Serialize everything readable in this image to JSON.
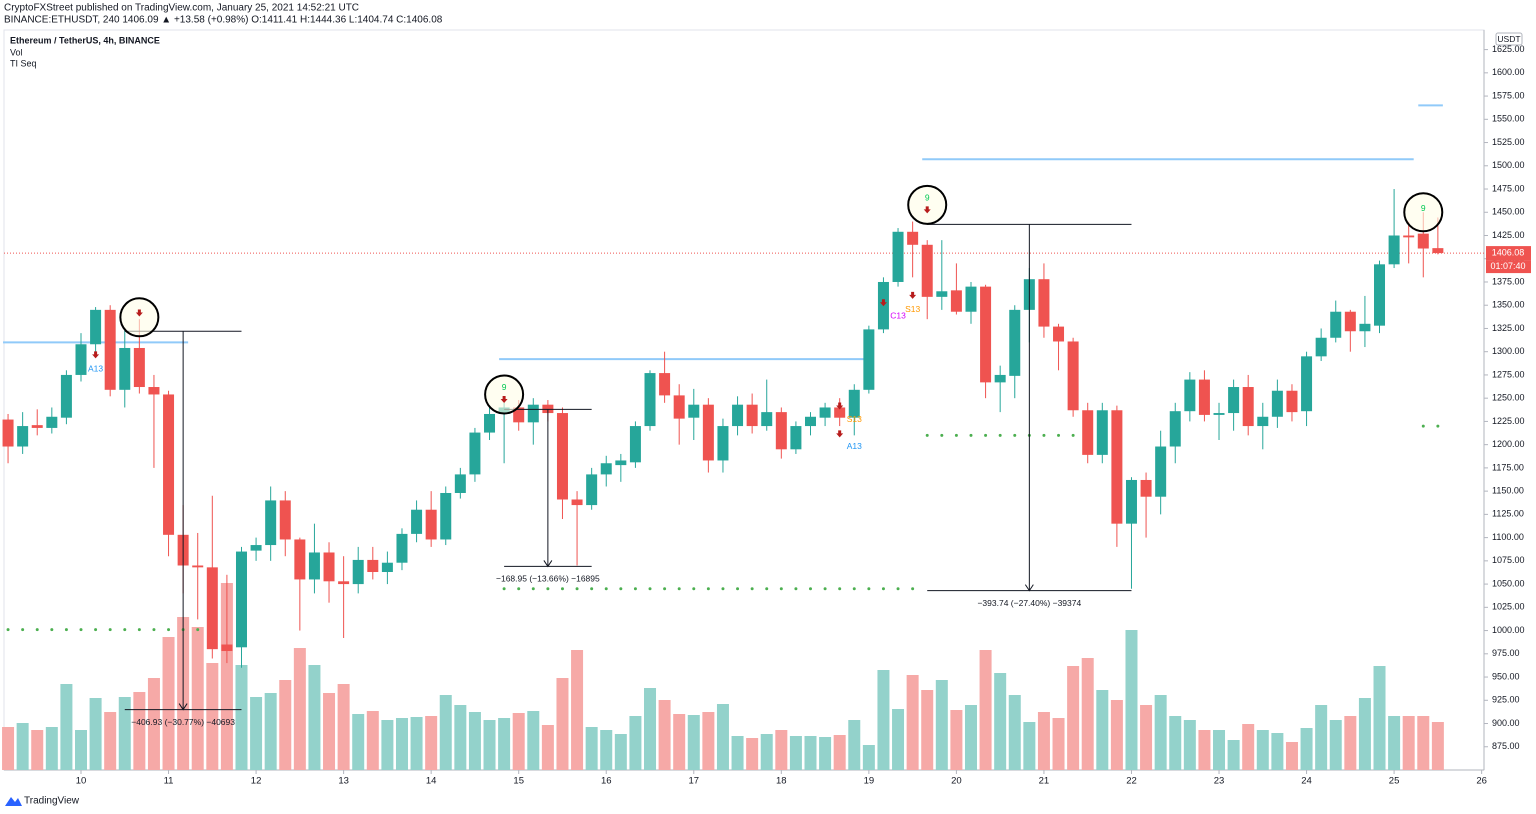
{
  "chart_data": {
    "type": "candlestick",
    "published": "CryptoFXStreet published on TradingView.com, January 25, 2021 14:52:21 UTC",
    "quote": "BINANCE:ETHUSDT, 240  1406.09  ▲ +13.58 (+0.98%)  O:1411.41  H:1444.36  L:1404.74  C:1406.08",
    "title": "Ethereum / TetherUS, 4h, BINANCE",
    "indicators": [
      "Vol",
      "TI Seq"
    ],
    "currency": "USDT",
    "footer": "TradingView",
    "up_color": "#26a69a",
    "down_color": "#ef5350",
    "volume_up_color": "#93d2cb",
    "volume_down_color": "#f6a9a7",
    "open": [
      1227,
      1198,
      1221,
      1218,
      1229,
      1275,
      1308,
      1345,
      1259,
      1304,
      1262,
      1254,
      1103,
      1070,
      1068,
      985,
      982,
      1086,
      1092,
      1140,
      1098,
      1055,
      1084,
      1053,
      1050,
      1076,
      1063,
      1073,
      1104,
      1130,
      1098,
      1148,
      1168,
      1213,
      1233,
      1240,
      1224,
      1243,
      1234,
      1141,
      1135,
      1168,
      1178,
      1181,
      1220,
      1277,
      1253,
      1229,
      1243,
      1183,
      1220,
      1243,
      1220,
      1235,
      1195,
      1220,
      1229,
      1240,
      1229,
      1259,
      1324,
      1375,
      1429,
      1415,
      1359,
      1366,
      1343,
      1370,
      1267,
      1274,
      1345,
      1378,
      1327,
      1311,
      1237,
      1189,
      1237,
      1115,
      1162,
      1144,
      1198,
      1236,
      1270,
      1232,
      1234,
      1262,
      1220,
      1230,
      1258,
      1236,
      1295,
      1315,
      1343,
      1322,
      1328,
      1394,
      1425,
      1427,
      1411.41
    ],
    "high": [
      1233,
      1235,
      1238,
      1240,
      1280,
      1320,
      1348,
      1350,
      1325,
      1335,
      1275,
      1258,
      1135,
      1105,
      1145,
      1060,
      1090,
      1100,
      1155,
      1150,
      1100,
      1115,
      1095,
      1080,
      1090,
      1090,
      1085,
      1110,
      1140,
      1150,
      1155,
      1175,
      1218,
      1240,
      1245,
      1248,
      1250,
      1248,
      1240,
      1150,
      1175,
      1188,
      1190,
      1225,
      1280,
      1300,
      1265,
      1260,
      1250,
      1228,
      1252,
      1255,
      1270,
      1240,
      1225,
      1235,
      1245,
      1250,
      1265,
      1328,
      1380,
      1433,
      1440,
      1420,
      1420,
      1395,
      1375,
      1372,
      1285,
      1350,
      1390,
      1395,
      1330,
      1315,
      1245,
      1245,
      1242,
      1165,
      1170,
      1215,
      1245,
      1278,
      1280,
      1245,
      1270,
      1275,
      1245,
      1270,
      1265,
      1300,
      1325,
      1355,
      1345,
      1360,
      1398,
      1475,
      1440,
      1450,
      1444.36
    ],
    "low": [
      1180,
      1190,
      1210,
      1212,
      1222,
      1268,
      1300,
      1252,
      1240,
      1255,
      1175,
      1080,
      1040,
      1012,
      970,
      965,
      960,
      1075,
      1075,
      1080,
      1000,
      1040,
      1030,
      992,
      1040,
      1055,
      1050,
      1065,
      1095,
      1090,
      1092,
      1142,
      1160,
      1205,
      1180,
      1215,
      1200,
      1225,
      1120,
      1070,
      1130,
      1155,
      1160,
      1175,
      1215,
      1245,
      1200,
      1205,
      1170,
      1170,
      1210,
      1212,
      1215,
      1185,
      1190,
      1210,
      1220,
      1220,
      1210,
      1255,
      1320,
      1370,
      1380,
      1335,
      1345,
      1340,
      1330,
      1250,
      1235,
      1250,
      1310,
      1315,
      1280,
      1230,
      1180,
      1180,
      1090,
      1045,
      1100,
      1125,
      1180,
      1225,
      1225,
      1205,
      1215,
      1210,
      1195,
      1218,
      1225,
      1220,
      1290,
      1310,
      1300,
      1305,
      1320,
      1390,
      1395,
      1380,
      1404.74
    ],
    "close": [
      1198,
      1220,
      1218,
      1230,
      1275,
      1308,
      1345,
      1259,
      1304,
      1262,
      1254,
      1103,
      1070,
      1068,
      980,
      978,
      1085,
      1092,
      1140,
      1098,
      1055,
      1084,
      1053,
      1050,
      1076,
      1063,
      1073,
      1104,
      1130,
      1098,
      1148,
      1168,
      1213,
      1233,
      1240,
      1224,
      1243,
      1234,
      1141,
      1135,
      1168,
      1180,
      1183,
      1220,
      1277,
      1253,
      1228,
      1243,
      1183,
      1220,
      1243,
      1220,
      1235,
      1195,
      1220,
      1230,
      1240,
      1229,
      1259,
      1324,
      1375,
      1429,
      1415,
      1359,
      1365,
      1343,
      1370,
      1267,
      1275,
      1345,
      1378,
      1327,
      1311,
      1237,
      1189,
      1237,
      1115,
      1162,
      1144,
      1198,
      1236,
      1270,
      1232,
      1234,
      1262,
      1220,
      1230,
      1258,
      1235,
      1295,
      1315,
      1343,
      1322,
      1330,
      1394,
      1425,
      1423,
      1411,
      1406.08
    ],
    "volumes": [
      43,
      47,
      40,
      43,
      86,
      40,
      72,
      58,
      73,
      78,
      92,
      133,
      153,
      143,
      107,
      187,
      105,
      73,
      77,
      90,
      122,
      105,
      77,
      86,
      56,
      59,
      50,
      52,
      53,
      54,
      75,
      65,
      58,
      50,
      52,
      57,
      59,
      45,
      92,
      120,
      43,
      40,
      36,
      54,
      82,
      70,
      56,
      55,
      58,
      66,
      34,
      32,
      36,
      40,
      34,
      34,
      33,
      35,
      50,
      25,
      100,
      61,
      95,
      80,
      90,
      60,
      65,
      120,
      97,
      75,
      48,
      58,
      52,
      104,
      112,
      80,
      70,
      140,
      65,
      75,
      54,
      50,
      40,
      40,
      30,
      46,
      40,
      37,
      28,
      42,
      65,
      50,
      54,
      72,
      104,
      54,
      54,
      54,
      48
    ],
    "ylim": [
      850,
      1645
    ],
    "vlim": [
      0,
      160
    ],
    "yticks": [
      {
        "value": 875,
        "label": "875.00"
      },
      {
        "value": 900,
        "label": "900.00"
      },
      {
        "value": 925,
        "label": "925.00"
      },
      {
        "value": 950,
        "label": "950.00"
      },
      {
        "value": 975,
        "label": "975.00"
      },
      {
        "value": 1000,
        "label": "1000.00"
      },
      {
        "value": 1025,
        "label": "1025.00"
      },
      {
        "value": 1050,
        "label": "1050.00"
      },
      {
        "value": 1075,
        "label": "1075.00"
      },
      {
        "value": 1100,
        "label": "1100.00"
      },
      {
        "value": 1125,
        "label": "1125.00"
      },
      {
        "value": 1150,
        "label": "1150.00"
      },
      {
        "value": 1175,
        "label": "1175.00"
      },
      {
        "value": 1200,
        "label": "1200.00"
      },
      {
        "value": 1225,
        "label": "1225.00"
      },
      {
        "value": 1250,
        "label": "1250.00"
      },
      {
        "value": 1275,
        "label": "1275.00"
      },
      {
        "value": 1300,
        "label": "1300.00"
      },
      {
        "value": 1325,
        "label": "1325.00"
      },
      {
        "value": 1350,
        "label": "1350.00"
      },
      {
        "value": 1375,
        "label": "1375.00"
      },
      {
        "value": 1400,
        "label": "1400.00"
      },
      {
        "value": 1425,
        "label": "1425.00"
      },
      {
        "value": 1450,
        "label": "1450.00"
      },
      {
        "value": 1475,
        "label": "1475.00"
      },
      {
        "value": 1500,
        "label": "1500.00"
      },
      {
        "value": 1525,
        "label": "1525.00"
      },
      {
        "value": 1550,
        "label": "1550.00"
      },
      {
        "value": 1575,
        "label": "1575.00"
      },
      {
        "value": 1600,
        "label": "1600.00"
      },
      {
        "value": 1625,
        "label": "1625.00"
      }
    ],
    "xticks": [
      {
        "value": 5,
        "label": "10"
      },
      {
        "value": 11,
        "label": "11"
      },
      {
        "value": 17,
        "label": "12"
      },
      {
        "value": 23,
        "label": "13"
      },
      {
        "value": 29,
        "label": "14"
      },
      {
        "value": 35,
        "label": "15"
      },
      {
        "value": 41,
        "label": "16"
      },
      {
        "value": 47,
        "label": "17"
      },
      {
        "value": 53,
        "label": "18"
      },
      {
        "value": 59,
        "label": "19"
      },
      {
        "value": 65,
        "label": "20"
      },
      {
        "value": 71,
        "label": "21"
      },
      {
        "value": 77,
        "label": "22"
      },
      {
        "value": 83,
        "label": "23"
      },
      {
        "value": 89,
        "label": "24"
      },
      {
        "value": 95,
        "label": "25"
      },
      {
        "value": 101,
        "label": "26"
      }
    ],
    "last_price": 1406.08,
    "countdown": "01:07:40",
    "resistance_lines": [
      {
        "price": 1310,
        "from": 0,
        "to": 12
      },
      {
        "price": 1292,
        "from": 34,
        "to": 59
      },
      {
        "price": 1507,
        "from": 63,
        "to": 96
      },
      {
        "price": 1565,
        "from": 97,
        "to": 98
      }
    ],
    "support_lines": [
      {
        "price": 1001,
        "from": 0,
        "to": 13
      },
      {
        "price": 1045,
        "from": 34,
        "to": 62
      },
      {
        "price": 1210,
        "from": 63,
        "to": 74
      },
      {
        "price": 1220,
        "from": 97,
        "to": 98
      }
    ],
    "measures": [
      {
        "from_price": 1322,
        "to_price": 915,
        "from_index": 8,
        "to_index": 16,
        "text": "−406.93 (−30.77%) −40693"
      },
      {
        "from_price": 1238,
        "to_price": 1069,
        "from_index": 34,
        "to_index": 40,
        "text": "−168.95 (−13.66%) −16895"
      },
      {
        "from_price": 1437,
        "to_price": 1043,
        "from_index": 63,
        "to_index": 77,
        "text": "−393.74 (−27.40%) −39374"
      }
    ],
    "circles": [
      {
        "index": 9,
        "price": 1337
      },
      {
        "index": 34,
        "price": 1254
      },
      {
        "index": 63,
        "price": 1458
      },
      {
        "index": 97,
        "price": 1450
      }
    ],
    "arrows": [
      {
        "index": 6,
        "price": 1295
      },
      {
        "index": 9,
        "price": 1340
      },
      {
        "index": 34,
        "price": 1247
      },
      {
        "index": 57,
        "price": 1240
      },
      {
        "index": 57,
        "price": 1210
      },
      {
        "index": 60,
        "price": 1351
      },
      {
        "index": 62,
        "price": 1359
      },
      {
        "index": 63,
        "price": 1451
      }
    ],
    "seq_labels": [
      {
        "index": 6,
        "price": 1281,
        "label": "A13",
        "color": "#2196f3"
      },
      {
        "index": 34,
        "price": 1261,
        "label": "9",
        "color": "#00c853"
      },
      {
        "index": 63,
        "price": 1465,
        "label": "9",
        "color": "#00c853"
      },
      {
        "index": 97,
        "price": 1454,
        "label": "9",
        "color": "#00c853"
      },
      {
        "index": 62,
        "price": 1345,
        "label": "S13",
        "color": "#ff9800"
      },
      {
        "index": 61,
        "price": 1338,
        "label": "C13",
        "color": "#d500f9"
      },
      {
        "index": 58,
        "price": 1227,
        "label": "S13",
        "color": "#ff9800"
      },
      {
        "index": 58,
        "price": 1198,
        "label": "A13",
        "color": "#2196f3"
      }
    ]
  }
}
